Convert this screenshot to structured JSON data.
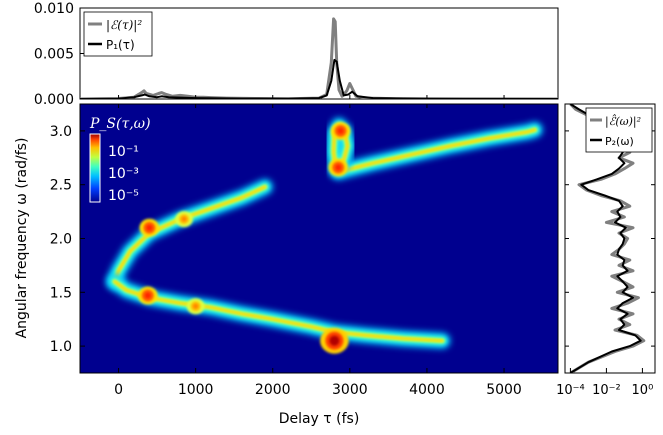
{
  "chart_data": [
    {
      "panel": "top",
      "type": "line",
      "xlim": [
        -500,
        5700
      ],
      "ylim": [
        0,
        0.01
      ],
      "yticks": [
        "0.000",
        "0.005",
        "0.010"
      ],
      "legend": {
        "placement": "top-left",
        "entries": [
          "|ℰ(τ)|²",
          "P₁(τ)"
        ]
      },
      "series": [
        {
          "name": "|ℰ(τ)|²",
          "color": "#808080",
          "x": [
            -500,
            0,
            200,
            300,
            330,
            360,
            450,
            520,
            560,
            620,
            700,
            800,
            900,
            1000,
            1100,
            1200,
            1400,
            1800,
            2200,
            2600,
            2700,
            2760,
            2790,
            2810,
            2830,
            2860,
            2900,
            2960,
            3000,
            3040,
            3080,
            3200,
            3600,
            4500,
            5700
          ],
          "y": [
            0,
            5e-05,
            0.0002,
            0.0007,
            0.0009,
            0.0006,
            0.0004,
            0.0006,
            0.0007,
            0.0005,
            0.0003,
            0.0004,
            0.0003,
            0.0002,
            0.0002,
            0.00015,
            0.0001,
            5e-05,
            3e-05,
            0.0001,
            0.0005,
            0.004,
            0.0088,
            0.0085,
            0.004,
            0.001,
            0.0003,
            0.0009,
            0.0017,
            0.001,
            0.0003,
            0.0001,
            3e-05,
            0,
            0
          ]
        },
        {
          "name": "P₁(τ)",
          "color": "#000000",
          "x": [
            -500,
            0,
            200,
            300,
            340,
            400,
            500,
            560,
            650,
            800,
            1000,
            1200,
            1600,
            2200,
            2600,
            2700,
            2760,
            2800,
            2830,
            2870,
            2920,
            2980,
            3030,
            3100,
            3300,
            4000,
            5700
          ],
          "y": [
            0,
            3e-05,
            0.0002,
            0.0004,
            0.0005,
            0.0003,
            0.0002,
            0.0003,
            0.0002,
            0.00015,
            0.0001,
            8e-05,
            4e-05,
            2e-05,
            0.0001,
            0.0004,
            0.002,
            0.0043,
            0.0041,
            0.002,
            0.0004,
            0.0005,
            0.0008,
            0.0003,
            0.0001,
            2e-05,
            0
          ]
        }
      ]
    },
    {
      "panel": "main",
      "type": "heatmap",
      "xlabel": "Delay τ (fs)",
      "ylabel": "Angular frequency ω (rad/fs)",
      "xlim": [
        -500,
        5700
      ],
      "ylim": [
        0.75,
        3.25
      ],
      "xticks": [
        "0",
        "1000",
        "2000",
        "3000",
        "4000",
        "5000"
      ],
      "yticks": [
        "1.0",
        "1.5",
        "2.0",
        "2.5",
        "3.0"
      ],
      "colorbar": {
        "title": "P_S(τ,ω)",
        "ticks": [
          "10⁻¹",
          "10⁻³",
          "10⁻⁵"
        ],
        "placement": "top-left",
        "scale": "log"
      },
      "curves": [
        {
          "name": "lower branch",
          "tau": [
            1900,
            1600,
            1200,
            800,
            400,
            150,
            0,
            -50
          ],
          "omega": [
            2.48,
            2.38,
            2.28,
            2.18,
            2.05,
            1.88,
            1.7,
            1.6
          ]
        },
        {
          "name": "upper-lower branch",
          "tau": [
            -50,
            100,
            400,
            800,
            1200,
            1600,
            2000,
            2500,
            2800,
            3200,
            3700,
            4200
          ],
          "omega": [
            1.6,
            1.52,
            1.45,
            1.4,
            1.36,
            1.3,
            1.25,
            1.18,
            1.13,
            1.1,
            1.07,
            1.05
          ]
        },
        {
          "name": "high-frequency branch",
          "tau": [
            2850,
            3300,
            3800,
            4300,
            4800,
            5300,
            5400
          ],
          "omega": [
            2.62,
            2.7,
            2.78,
            2.86,
            2.93,
            2.99,
            3.01
          ]
        },
        {
          "name": "loop",
          "tau": [
            2820,
            2790,
            2800,
            2860,
            2930,
            2970,
            2930,
            2870
          ],
          "omega": [
            2.65,
            2.8,
            2.98,
            3.05,
            3.0,
            2.86,
            2.75,
            2.66
          ]
        }
      ],
      "hotspots": [
        {
          "tau": 2800,
          "omega": 1.05,
          "level": "high"
        },
        {
          "tau": 380,
          "omega": 1.47,
          "level": "mid"
        },
        {
          "tau": 400,
          "omega": 2.1,
          "level": "mid"
        },
        {
          "tau": 850,
          "omega": 2.18,
          "level": "low"
        },
        {
          "tau": 1000,
          "omega": 1.37,
          "level": "low"
        },
        {
          "tau": 2880,
          "omega": 3.0,
          "level": "mid"
        },
        {
          "tau": 2850,
          "omega": 2.66,
          "level": "mid"
        }
      ]
    },
    {
      "panel": "right",
      "type": "line",
      "xscale": "log",
      "xlim": [
        5e-05,
        5
      ],
      "ylim": [
        0.75,
        3.25
      ],
      "xticks": [
        "10⁻⁴",
        "10⁻²",
        "10⁰"
      ],
      "legend": {
        "placement": "top-right",
        "entries": [
          "|ℰ̂(ω)|²",
          "P₂(ω)"
        ]
      },
      "series": [
        {
          "name": "|ℰ̂(ω)|²",
          "color": "#808080",
          "omega": [
            0.75,
            0.85,
            0.95,
            1.0,
            1.05,
            1.1,
            1.15,
            1.2,
            1.25,
            1.3,
            1.35,
            1.4,
            1.45,
            1.5,
            1.55,
            1.6,
            1.65,
            1.7,
            1.75,
            1.8,
            1.85,
            1.9,
            1.95,
            2.0,
            2.05,
            2.1,
            2.15,
            2.2,
            2.25,
            2.3,
            2.35,
            2.4,
            2.45,
            2.5,
            2.55,
            2.6,
            2.65,
            2.7,
            2.75,
            2.8,
            2.85,
            2.9,
            2.95,
            3.0,
            3.05,
            3.1,
            3.15,
            3.2,
            3.25
          ],
          "value": [
            0.0001,
            0.001,
            0.03,
            0.3,
            1.2,
            0.5,
            0.03,
            0.2,
            0.05,
            0.3,
            0.02,
            0.15,
            0.6,
            0.04,
            0.3,
            0.08,
            0.02,
            0.3,
            0.05,
            0.2,
            0.02,
            0.05,
            0.1,
            0.15,
            0.05,
            0.3,
            0.01,
            0.1,
            0.02,
            0.2,
            0.06,
            0.005,
            0.0008,
            0.0003,
            0.005,
            0.03,
            0.1,
            0.3,
            0.05,
            0.2,
            0.04,
            0.2,
            0.2,
            0.05,
            0.02,
            0.005,
            0.0008,
            0.0002,
            0.0001
          ]
        },
        {
          "name": "P₂(ω)",
          "color": "#000000",
          "omega": [
            0.75,
            0.85,
            0.95,
            1.0,
            1.05,
            1.1,
            1.15,
            1.2,
            1.25,
            1.3,
            1.35,
            1.4,
            1.45,
            1.5,
            1.55,
            1.6,
            1.65,
            1.7,
            1.75,
            1.8,
            1.85,
            1.9,
            1.95,
            2.0,
            2.05,
            2.1,
            2.15,
            2.2,
            2.25,
            2.3,
            2.35,
            2.4,
            2.45,
            2.5,
            2.55,
            2.6,
            2.65,
            2.7,
            2.75,
            2.8,
            2.85,
            2.9,
            2.95,
            3.0,
            3.05,
            3.1,
            3.15,
            3.2,
            3.25
          ],
          "value": [
            0.0001,
            0.001,
            0.02,
            0.2,
            0.8,
            0.4,
            0.05,
            0.1,
            0.06,
            0.15,
            0.04,
            0.08,
            0.3,
            0.08,
            0.15,
            0.08,
            0.04,
            0.15,
            0.08,
            0.1,
            0.04,
            0.05,
            0.08,
            0.1,
            0.06,
            0.12,
            0.03,
            0.06,
            0.04,
            0.08,
            0.05,
            0.008,
            0.001,
            0.0004,
            0.003,
            0.02,
            0.05,
            0.1,
            0.05,
            0.08,
            0.05,
            0.08,
            0.08,
            0.04,
            0.02,
            0.006,
            0.001,
            0.0003,
            0.0001
          ]
        }
      ]
    }
  ]
}
